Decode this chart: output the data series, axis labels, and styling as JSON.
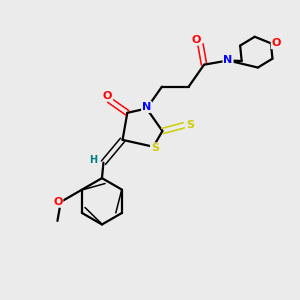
{
  "bg_color": "#ebebeb",
  "bond_color": "#000000",
  "atom_colors": {
    "O": "#ff0000",
    "N": "#0000ff",
    "S": "#cccc00",
    "H": "#008080",
    "C": "#000000"
  }
}
